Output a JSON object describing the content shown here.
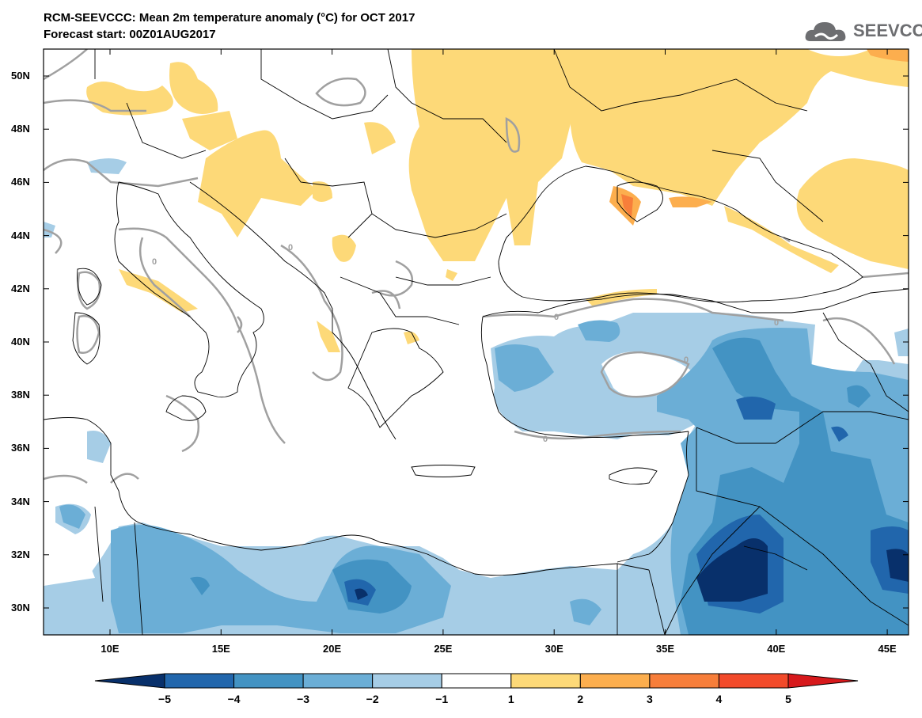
{
  "title_line1": "RCM-SEEVCCC: Mean 2m temperature anomaly (°C) for OCT 2017",
  "title_line2": "Forecast start: 00Z01AUG2017",
  "logo_text": "SEEVCCC",
  "lat_labels": [
    "50N",
    "48N",
    "46N",
    "44N",
    "42N",
    "40N",
    "38N",
    "36N",
    "34N",
    "32N",
    "30N"
  ],
  "lon_labels": [
    "10E",
    "15E",
    "20E",
    "25E",
    "30E",
    "35E",
    "40E",
    "45E"
  ],
  "colorbar": {
    "labels": [
      "−5",
      "−4",
      "−3",
      "−2",
      "−1",
      "1",
      "2",
      "3",
      "4",
      "5"
    ],
    "colors": [
      "#08306b",
      "#2166ac",
      "#4393c3",
      "#6baed6",
      "#a6cde6",
      "#ffffff",
      "#fdd978",
      "#fcae4e",
      "#f77e3a",
      "#f24a2a",
      "#d7191c"
    ]
  },
  "contour_label": "0",
  "colors": {
    "cold_1": "#a6cde6",
    "cold_2": "#6baed6",
    "cold_3": "#4393c3",
    "cold_4": "#2166ac",
    "cold_5": "#08306b",
    "warm_1": "#fdd978",
    "warm_2": "#fcae4e",
    "warm_3": "#f77e3a",
    "zero_contour": "#a0a0a0"
  }
}
